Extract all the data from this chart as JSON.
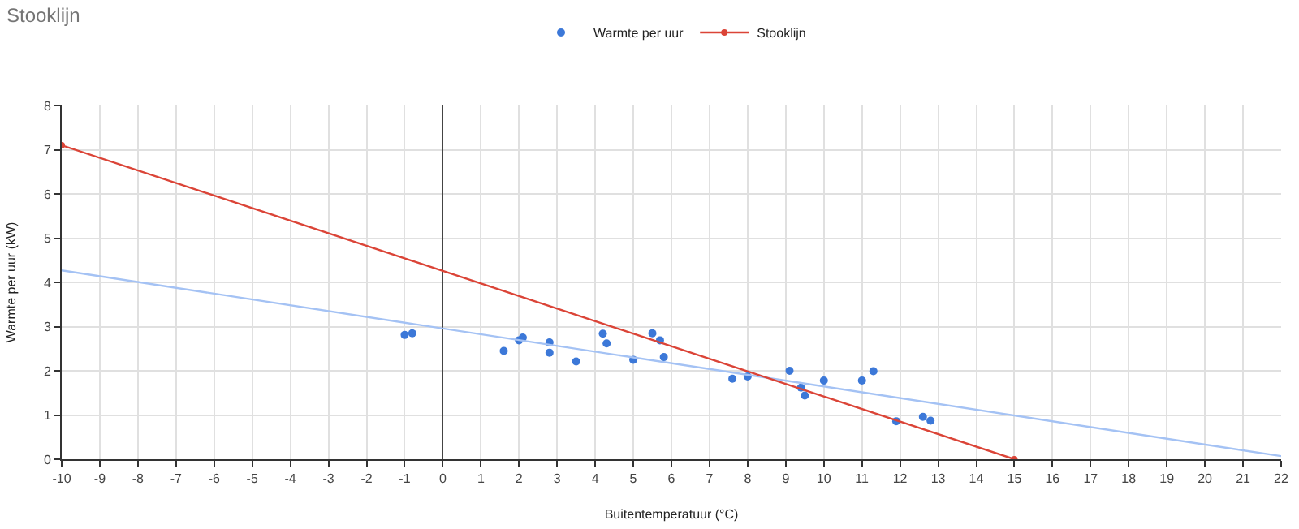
{
  "chart_data": {
    "type": "scatter",
    "title": "Stooklijn",
    "xlabel": "Buitentemperatuur (°C)",
    "ylabel": "Warmte per uur (kW)",
    "xlim": [
      -10,
      22
    ],
    "xticks": [
      -10,
      -9,
      -8,
      -7,
      -6,
      -5,
      -4,
      -3,
      -2,
      -1,
      0,
      1,
      2,
      3,
      4,
      5,
      6,
      7,
      8,
      9,
      10,
      11,
      12,
      13,
      14,
      15,
      16,
      17,
      18,
      19,
      20,
      21,
      22
    ],
    "ylim": [
      0,
      8
    ],
    "yticks": [
      0,
      1,
      2,
      3,
      4,
      5,
      6,
      7,
      8
    ],
    "grid": true,
    "legend": "top",
    "marker": "circle",
    "series": [
      {
        "name": "Warmte per uur",
        "color": "#3c78d8",
        "x": [
          -1.0,
          -0.8,
          1.6,
          2.0,
          2.1,
          2.8,
          2.8,
          3.5,
          4.2,
          4.3,
          5.0,
          5.5,
          5.7,
          5.8,
          7.6,
          8.0,
          9.1,
          9.4,
          9.5,
          10.0,
          11.0,
          11.3,
          11.9,
          12.6,
          12.8
        ],
        "values": [
          2.81,
          2.85,
          2.45,
          2.69,
          2.75,
          2.64,
          2.41,
          2.21,
          2.84,
          2.62,
          2.25,
          2.85,
          2.69,
          2.31,
          1.82,
          1.87,
          2.0,
          1.62,
          1.44,
          1.78,
          1.78,
          1.99,
          0.86,
          0.96,
          0.87
        ]
      },
      {
        "type": "line",
        "color": "#a4c2f4",
        "marker": "none",
        "x": [
          -10,
          22
        ],
        "values": [
          4.27,
          0.07
        ]
      },
      {
        "name": "Stooklijn",
        "type": "line",
        "color": "#db4437",
        "x": [
          -10,
          15
        ],
        "values": [
          7.1,
          0
        ]
      }
    ]
  }
}
